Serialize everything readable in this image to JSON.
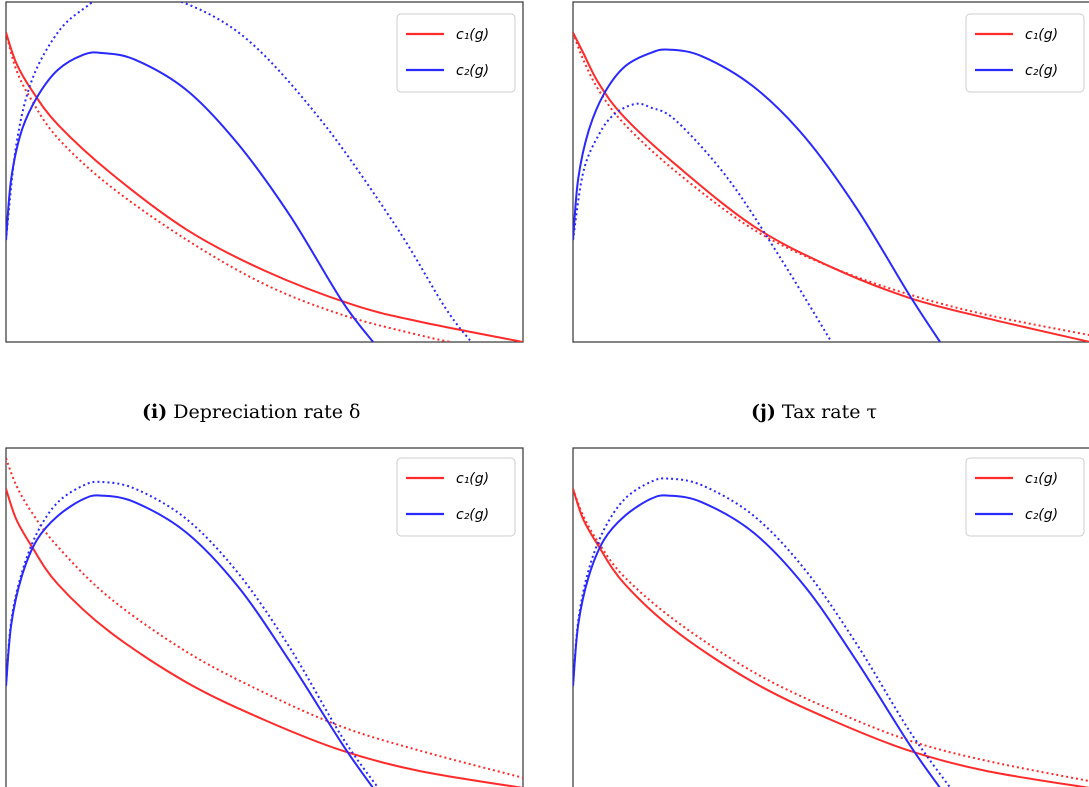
{
  "legend": {
    "c1": "c₁(g)",
    "c2": "c₂(g)"
  },
  "captions": [
    {
      "label": "(i)",
      "text": " Depreciation rate δ"
    },
    {
      "label": "(j)",
      "text": " Tax rate τ"
    }
  ],
  "colors": {
    "c1": "#ff2a2a",
    "c2": "#2828ff",
    "frame": "#333333"
  },
  "chart_data": [
    {
      "type": "line",
      "xlim": [
        0,
        1
      ],
      "ylim": [
        0,
        1
      ],
      "legend_position": "top-right",
      "series": [
        {
          "name": "c₁(g)",
          "style": "solid",
          "color": "#ff2a2a",
          "points": [
            [
              0,
              0.91
            ],
            [
              0.02,
              0.82
            ],
            [
              0.05,
              0.74
            ],
            [
              0.1,
              0.64
            ],
            [
              0.2,
              0.5
            ],
            [
              0.35,
              0.33
            ],
            [
              0.5,
              0.21
            ],
            [
              0.67,
              0.11
            ],
            [
              0.8,
              0.06
            ],
            [
              1.0,
              0.0
            ]
          ]
        },
        {
          "name": "c₁(g) alt",
          "style": "dotted",
          "color": "#ff2a2a",
          "points": [
            [
              0,
              0.91
            ],
            [
              0.02,
              0.8
            ],
            [
              0.05,
              0.71
            ],
            [
              0.1,
              0.6
            ],
            [
              0.2,
              0.46
            ],
            [
              0.35,
              0.3
            ],
            [
              0.5,
              0.17
            ],
            [
              0.65,
              0.08
            ],
            [
              0.8,
              0.02
            ],
            [
              0.86,
              0.0
            ]
          ]
        },
        {
          "name": "c₂(g)",
          "style": "solid",
          "color": "#2828ff",
          "points": [
            [
              0,
              0.3
            ],
            [
              0.01,
              0.48
            ],
            [
              0.03,
              0.62
            ],
            [
              0.06,
              0.72
            ],
            [
              0.1,
              0.8
            ],
            [
              0.15,
              0.845
            ],
            [
              0.185,
              0.85
            ],
            [
              0.25,
              0.83
            ],
            [
              0.35,
              0.74
            ],
            [
              0.45,
              0.58
            ],
            [
              0.55,
              0.37
            ],
            [
              0.65,
              0.12
            ],
            [
              0.71,
              0.0
            ]
          ]
        },
        {
          "name": "c₂(g) alt",
          "style": "dotted",
          "color": "#2828ff",
          "points": [
            [
              0,
              0.3
            ],
            [
              0.02,
              0.58
            ],
            [
              0.05,
              0.77
            ],
            [
              0.1,
              0.91
            ],
            [
              0.15,
              0.98
            ],
            [
              0.2,
              1.02
            ],
            [
              0.3,
              1.02
            ],
            [
              0.45,
              0.91
            ],
            [
              0.6,
              0.67
            ],
            [
              0.75,
              0.35
            ],
            [
              0.85,
              0.1
            ],
            [
              0.9,
              0.0
            ]
          ]
        }
      ]
    },
    {
      "type": "line",
      "xlim": [
        0,
        1
      ],
      "ylim": [
        0,
        1
      ],
      "legend_position": "top-right",
      "series": [
        {
          "name": "c₁(g)",
          "style": "solid",
          "color": "#ff2a2a",
          "points": [
            [
              0,
              0.91
            ],
            [
              0.02,
              0.85
            ],
            [
              0.05,
              0.76
            ],
            [
              0.1,
              0.66
            ],
            [
              0.2,
              0.52
            ],
            [
              0.35,
              0.34
            ],
            [
              0.5,
              0.22
            ],
            [
              0.65,
              0.13
            ],
            [
              0.8,
              0.07
            ],
            [
              1.0,
              0.0
            ]
          ]
        },
        {
          "name": "c₁(g) alt",
          "style": "dotted",
          "color": "#ff2a2a",
          "points": [
            [
              0,
              0.91
            ],
            [
              0.02,
              0.83
            ],
            [
              0.05,
              0.74
            ],
            [
              0.1,
              0.64
            ],
            [
              0.2,
              0.5
            ],
            [
              0.35,
              0.33
            ],
            [
              0.5,
              0.22
            ],
            [
              0.65,
              0.14
            ],
            [
              0.8,
              0.08
            ],
            [
              1.0,
              0.02
            ]
          ]
        },
        {
          "name": "c₂(g)",
          "style": "solid",
          "color": "#2828ff",
          "points": [
            [
              0,
              0.3
            ],
            [
              0.01,
              0.48
            ],
            [
              0.03,
              0.62
            ],
            [
              0.06,
              0.73
            ],
            [
              0.1,
              0.81
            ],
            [
              0.15,
              0.85
            ],
            [
              0.185,
              0.86
            ],
            [
              0.25,
              0.84
            ],
            [
              0.35,
              0.75
            ],
            [
              0.45,
              0.6
            ],
            [
              0.55,
              0.39
            ],
            [
              0.65,
              0.14
            ],
            [
              0.71,
              0.0
            ]
          ]
        },
        {
          "name": "c₂(g) alt",
          "style": "dotted",
          "color": "#2828ff",
          "points": [
            [
              0,
              0.3
            ],
            [
              0.02,
              0.5
            ],
            [
              0.05,
              0.61
            ],
            [
              0.08,
              0.67
            ],
            [
              0.12,
              0.7
            ],
            [
              0.15,
              0.69
            ],
            [
              0.2,
              0.65
            ],
            [
              0.3,
              0.48
            ],
            [
              0.4,
              0.25
            ],
            [
              0.5,
              0.0
            ]
          ]
        }
      ]
    },
    {
      "type": "line",
      "xlim": [
        0,
        1
      ],
      "ylim": [
        0,
        1
      ],
      "legend_position": "top-right",
      "series": [
        {
          "name": "c₁(g)",
          "style": "solid",
          "color": "#ff2a2a",
          "points": [
            [
              0,
              0.88
            ],
            [
              0.02,
              0.79
            ],
            [
              0.05,
              0.71
            ],
            [
              0.1,
              0.6
            ],
            [
              0.2,
              0.46
            ],
            [
              0.35,
              0.31
            ],
            [
              0.5,
              0.2
            ],
            [
              0.65,
              0.11
            ],
            [
              0.8,
              0.05
            ],
            [
              1.0,
              0.0
            ]
          ]
        },
        {
          "name": "c₁(g) alt",
          "style": "dotted",
          "color": "#ff2a2a",
          "points": [
            [
              0,
              0.97
            ],
            [
              0.02,
              0.89
            ],
            [
              0.05,
              0.81
            ],
            [
              0.1,
              0.71
            ],
            [
              0.2,
              0.56
            ],
            [
              0.35,
              0.4
            ],
            [
              0.5,
              0.28
            ],
            [
              0.65,
              0.18
            ],
            [
              0.8,
              0.11
            ],
            [
              1.0,
              0.03
            ]
          ]
        },
        {
          "name": "c₂(g)",
          "style": "solid",
          "color": "#2828ff",
          "points": [
            [
              0,
              0.3
            ],
            [
              0.01,
              0.48
            ],
            [
              0.03,
              0.62
            ],
            [
              0.06,
              0.73
            ],
            [
              0.1,
              0.8
            ],
            [
              0.15,
              0.85
            ],
            [
              0.185,
              0.86
            ],
            [
              0.25,
              0.84
            ],
            [
              0.35,
              0.75
            ],
            [
              0.45,
              0.59
            ],
            [
              0.55,
              0.37
            ],
            [
              0.65,
              0.13
            ],
            [
              0.71,
              0.0
            ]
          ]
        },
        {
          "name": "c₂(g) alt",
          "style": "dotted",
          "color": "#2828ff",
          "points": [
            [
              0,
              0.3
            ],
            [
              0.01,
              0.49
            ],
            [
              0.03,
              0.63
            ],
            [
              0.06,
              0.75
            ],
            [
              0.1,
              0.84
            ],
            [
              0.15,
              0.89
            ],
            [
              0.185,
              0.9
            ],
            [
              0.25,
              0.88
            ],
            [
              0.35,
              0.79
            ],
            [
              0.45,
              0.63
            ],
            [
              0.55,
              0.41
            ],
            [
              0.65,
              0.15
            ],
            [
              0.72,
              0.0
            ]
          ]
        }
      ]
    },
    {
      "type": "line",
      "xlim": [
        0,
        1
      ],
      "ylim": [
        0,
        1
      ],
      "legend_position": "top-right",
      "series": [
        {
          "name": "c₁(g)",
          "style": "solid",
          "color": "#ff2a2a",
          "points": [
            [
              0,
              0.88
            ],
            [
              0.02,
              0.79
            ],
            [
              0.05,
              0.71
            ],
            [
              0.1,
              0.6
            ],
            [
              0.2,
              0.46
            ],
            [
              0.35,
              0.31
            ],
            [
              0.5,
              0.2
            ],
            [
              0.65,
              0.11
            ],
            [
              0.8,
              0.05
            ],
            [
              1.0,
              0.0
            ]
          ]
        },
        {
          "name": "c₁(g) alt",
          "style": "dotted",
          "color": "#ff2a2a",
          "points": [
            [
              0,
              0.88
            ],
            [
              0.02,
              0.8
            ],
            [
              0.05,
              0.72
            ],
            [
              0.1,
              0.62
            ],
            [
              0.2,
              0.49
            ],
            [
              0.35,
              0.34
            ],
            [
              0.5,
              0.23
            ],
            [
              0.65,
              0.14
            ],
            [
              0.8,
              0.08
            ],
            [
              1.0,
              0.02
            ]
          ]
        },
        {
          "name": "c₂(g)",
          "style": "solid",
          "color": "#2828ff",
          "points": [
            [
              0,
              0.3
            ],
            [
              0.01,
              0.48
            ],
            [
              0.03,
              0.62
            ],
            [
              0.06,
              0.73
            ],
            [
              0.1,
              0.8
            ],
            [
              0.15,
              0.85
            ],
            [
              0.185,
              0.86
            ],
            [
              0.25,
              0.84
            ],
            [
              0.35,
              0.75
            ],
            [
              0.45,
              0.59
            ],
            [
              0.55,
              0.37
            ],
            [
              0.65,
              0.13
            ],
            [
              0.71,
              0.0
            ]
          ]
        },
        {
          "name": "c₂(g) alt",
          "style": "dotted",
          "color": "#2828ff",
          "points": [
            [
              0,
              0.3
            ],
            [
              0.01,
              0.49
            ],
            [
              0.03,
              0.64
            ],
            [
              0.06,
              0.76
            ],
            [
              0.1,
              0.85
            ],
            [
              0.15,
              0.9
            ],
            [
              0.185,
              0.91
            ],
            [
              0.25,
              0.89
            ],
            [
              0.35,
              0.8
            ],
            [
              0.45,
              0.64
            ],
            [
              0.55,
              0.42
            ],
            [
              0.65,
              0.17
            ],
            [
              0.73,
              0.0
            ]
          ]
        }
      ]
    }
  ]
}
